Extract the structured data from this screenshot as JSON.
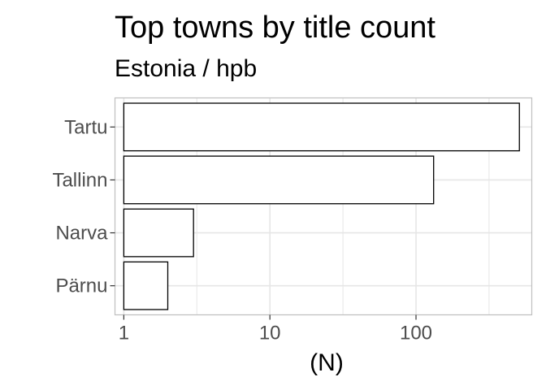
{
  "chart_data": {
    "type": "bar",
    "orientation": "horizontal",
    "title": "Top towns by title count",
    "subtitle": "Estonia / hpb",
    "xlabel": "(N)",
    "ylabel": "",
    "x_scale": "log10",
    "xlim": [
      0.87,
      620
    ],
    "x_ticks": [
      1,
      10,
      100
    ],
    "x_tick_labels": [
      "1",
      "10",
      "100"
    ],
    "categories": [
      "Tartu",
      "Tallinn",
      "Narva",
      "Pärnu"
    ],
    "values": [
      510,
      132,
      3,
      2
    ],
    "grid": true,
    "legend": "none",
    "bar_fill": "#ffffff",
    "bar_stroke": "#000000",
    "grid_color": "#e6e6e6",
    "panel_border_color": "#bfbfbf"
  }
}
